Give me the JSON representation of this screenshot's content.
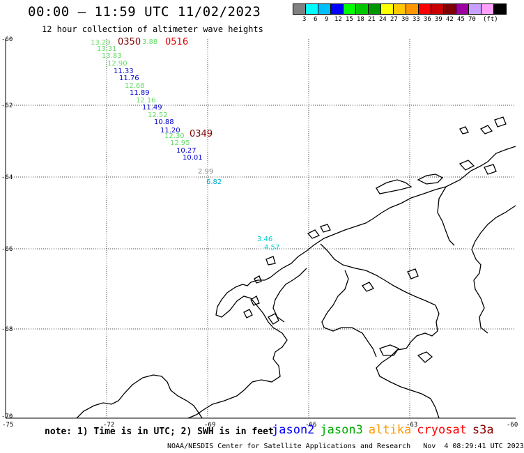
{
  "title": "00:00 – 11:59 UTC 11/02/2023",
  "subtitle": "12 hour collection of altimeter wave heights",
  "legend": {
    "unit": "(ft)",
    "colors": [
      "#808080",
      "#00ffff",
      "#00bfff",
      "#0000ff",
      "#00ff00",
      "#00c800",
      "#009600",
      "#ffff00",
      "#ffc800",
      "#ff9600",
      "#ff0000",
      "#c80000",
      "#800000",
      "#a000a0",
      "#c8a0ff",
      "#ffa0ff",
      "#000000"
    ],
    "labels": [
      "3",
      "6",
      "9",
      "12",
      "15",
      "18",
      "21",
      "24",
      "27",
      "30",
      "33",
      "36",
      "39",
      "42",
      "45",
      "70"
    ]
  },
  "axes": {
    "lat_labels": [
      "-60",
      "-62",
      "-64",
      "-66",
      "-68",
      "-70"
    ],
    "lon_labels": [
      "-75",
      "-72",
      "-69",
      "-66",
      "-63",
      "-60"
    ]
  },
  "observations": [
    {
      "value": "13.29",
      "color": "#66dd66"
    },
    {
      "value": "13.31",
      "color": "#66dd66"
    },
    {
      "value": "13.83",
      "color": "#66dd66"
    },
    {
      "value": "12.90",
      "color": "#66dd66"
    },
    {
      "value": "11.33",
      "color": "#0000cc"
    },
    {
      "value": "11.76",
      "color": "#0000cc"
    },
    {
      "value": "12.68",
      "color": "#66dd66"
    },
    {
      "value": "11.89",
      "color": "#0000cc"
    },
    {
      "value": "12.16",
      "color": "#66dd66"
    },
    {
      "value": "11.49",
      "color": "#0000cc"
    },
    {
      "value": "12.52",
      "color": "#66dd66"
    },
    {
      "value": "10.88",
      "color": "#0000cc"
    },
    {
      "value": "11.20",
      "color": "#0000cc"
    },
    {
      "value": "12.30",
      "color": "#66dd66"
    },
    {
      "value": "12.95",
      "color": "#66dd66"
    },
    {
      "value": "10.27",
      "color": "#0000cc"
    },
    {
      "value": "10.01",
      "color": "#0000cc"
    },
    {
      "value": "2.99",
      "color": "#888888"
    },
    {
      "value": "6.82",
      "color": "#00aacc"
    },
    {
      "value": "3.46",
      "color": "#00cccc"
    },
    {
      "value": "4.57",
      "color": "#00cccc"
    },
    {
      "value": "3.88",
      "color": "#66dd66"
    }
  ],
  "pass_times": [
    {
      "value": "0350",
      "color": "#800000"
    },
    {
      "value": "0516",
      "color": "#dd0000"
    },
    {
      "value": "0349",
      "color": "#800000"
    }
  ],
  "note": "note: 1) Time is in UTC; 2) SWH is in feet",
  "satellites": [
    {
      "name": "jason2",
      "color": "#0000ff"
    },
    {
      "name": "jason3",
      "color": "#00aa00"
    },
    {
      "name": "altika",
      "color": "#ff9900"
    },
    {
      "name": "cryosat",
      "color": "#ff0000"
    },
    {
      "name": "s3a",
      "color": "#880000"
    }
  ],
  "credit": "NOAA/NESDIS Center for Satellite Applications and Research   Nov  4 08:29:41 UTC 2023"
}
